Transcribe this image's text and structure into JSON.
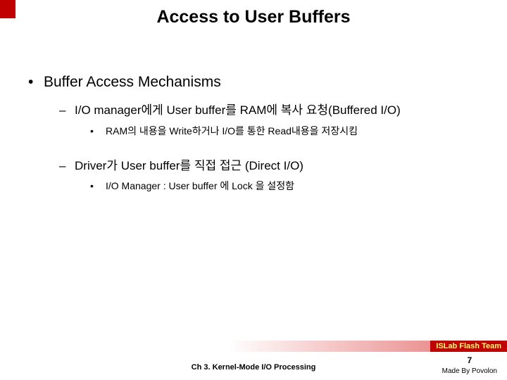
{
  "accent_color": "#c00000",
  "title": "Access to User Buffers",
  "body": {
    "lvl1_bullet": "•",
    "lvl2_bullet": "–",
    "lvl3_bullet": "•",
    "heading": "Buffer Access Mechanisms",
    "items": [
      {
        "text": "I/O manager에게 User buffer를 RAM에 복사 요청(Buffered I/O)",
        "sub": "RAM의 내용을 Write하거나 I/O를 통한 Read내용을 저장시킴"
      },
      {
        "text": "Driver가 User buffer를 직접 접근 (Direct I/O)",
        "sub": "I/O Manager : User buffer 에 Lock 을 설정함"
      }
    ]
  },
  "footer": {
    "badge_text": "ISLab Flash Team",
    "badge_bg": "#c00000",
    "badge_fg": "#ffff66",
    "gradient_from": "#ffffff",
    "gradient_to": "#e46a6a",
    "center_text": "Ch 3. Kernel-Mode I/O Processing",
    "page_number": "7",
    "credit": "Made By Povolon"
  }
}
